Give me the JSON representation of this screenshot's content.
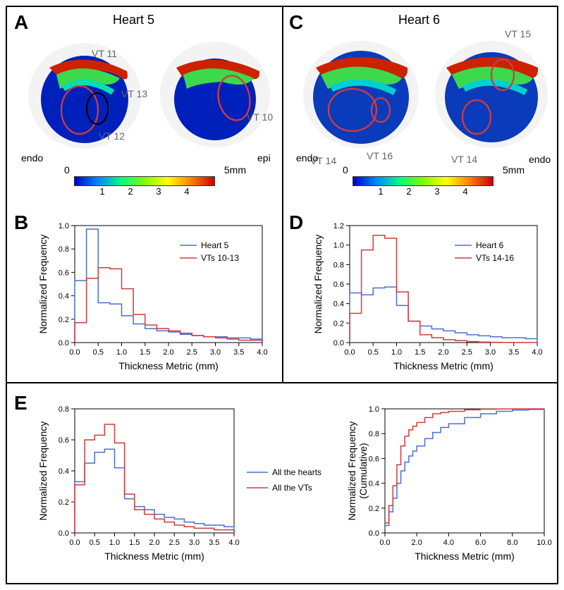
{
  "panels": {
    "A": {
      "letter": "A",
      "title": "Heart 5"
    },
    "B": {
      "letter": "B"
    },
    "C": {
      "letter": "C",
      "title": "Heart 6"
    },
    "D": {
      "letter": "D"
    },
    "E": {
      "letter": "E"
    }
  },
  "heart5": {
    "view1_label": "endo",
    "view2_label": "epi",
    "vt_labels": {
      "vt10": "VT 10",
      "vt11": "VT 11",
      "vt12": "VT 12",
      "vt13": "VT 13"
    }
  },
  "heart6": {
    "view1_label": "endo",
    "view2_label": "endo",
    "vt_labels": {
      "vt14a": "VT 14",
      "vt14b": "VT 14",
      "vt15": "VT 15",
      "vt16": "VT 16"
    }
  },
  "colorbar": {
    "min_label": "0",
    "max_label": "5mm",
    "ticks": [
      "1",
      "2",
      "3",
      "4"
    ]
  },
  "colors": {
    "heart_line": "#4a6fd4",
    "vt_line": "#d43a3a",
    "axis": "#000000"
  },
  "chartB": {
    "type": "histogram",
    "xlabel": "Thickness Metric (mm)",
    "ylabel": "Normalized Frequency",
    "xlim": [
      0,
      4
    ],
    "ylim": [
      0,
      1.0
    ],
    "xticks": [
      0.0,
      0.5,
      1.0,
      1.5,
      2.0,
      2.5,
      3.0,
      3.5,
      4.0
    ],
    "yticks": [
      0.0,
      0.2,
      0.4,
      0.6,
      0.8,
      1.0
    ],
    "legend": {
      "series1": "Heart 5",
      "series2": "VTs 10-13"
    },
    "bin_edges": [
      0,
      0.25,
      0.5,
      0.75,
      1.0,
      1.25,
      1.5,
      1.75,
      2.0,
      2.25,
      2.5,
      2.75,
      3.0,
      3.25,
      3.5,
      3.75,
      4.0
    ],
    "series1_vals": [
      0.53,
      0.97,
      0.34,
      0.33,
      0.23,
      0.16,
      0.12,
      0.1,
      0.09,
      0.07,
      0.06,
      0.05,
      0.05,
      0.04,
      0.04,
      0.03
    ],
    "series2_vals": [
      0.17,
      0.55,
      0.64,
      0.63,
      0.46,
      0.24,
      0.15,
      0.12,
      0.1,
      0.08,
      0.06,
      0.05,
      0.04,
      0.03,
      0.02,
      0.02
    ]
  },
  "chartD": {
    "type": "histogram",
    "xlabel": "Thickness Metric (mm)",
    "ylabel": "Normalized Frequency",
    "xlim": [
      0,
      4
    ],
    "ylim": [
      0,
      1.2
    ],
    "xticks": [
      0.0,
      0.5,
      1.0,
      1.5,
      2.0,
      2.5,
      3.0,
      3.5,
      4.0
    ],
    "yticks": [
      0.0,
      0.2,
      0.4,
      0.6,
      0.8,
      1.0,
      1.2
    ],
    "legend": {
      "series1": "Heart 6",
      "series2": "VTs 14-16"
    },
    "bin_edges": [
      0,
      0.25,
      0.5,
      0.75,
      1.0,
      1.25,
      1.5,
      1.75,
      2.0,
      2.25,
      2.5,
      2.75,
      3.0,
      3.25,
      3.5,
      3.75,
      4.0
    ],
    "series1_vals": [
      0.51,
      0.49,
      0.56,
      0.57,
      0.38,
      0.22,
      0.17,
      0.14,
      0.12,
      0.1,
      0.08,
      0.07,
      0.06,
      0.05,
      0.05,
      0.04
    ],
    "series2_vals": [
      0.3,
      0.95,
      1.1,
      1.07,
      0.52,
      0.22,
      0.08,
      0.05,
      0.03,
      0.02,
      0.01,
      0.005,
      0.003,
      0.002,
      0.001,
      0.001
    ]
  },
  "chartE1": {
    "type": "histogram",
    "xlabel": "Thickness Metric (mm)",
    "ylabel": "Normalized Frequency",
    "xlim": [
      0,
      4
    ],
    "ylim": [
      0,
      0.8
    ],
    "xticks": [
      0.0,
      0.5,
      1.0,
      1.5,
      2.0,
      2.5,
      3.0,
      3.5,
      4.0
    ],
    "yticks": [
      0.0,
      0.2,
      0.4,
      0.6,
      0.8
    ],
    "bin_edges": [
      0,
      0.25,
      0.5,
      0.75,
      1.0,
      1.25,
      1.5,
      1.75,
      2.0,
      2.25,
      2.5,
      2.75,
      3.0,
      3.25,
      3.5,
      3.75,
      4.0
    ],
    "series1_vals": [
      0.33,
      0.45,
      0.52,
      0.54,
      0.42,
      0.22,
      0.17,
      0.15,
      0.12,
      0.1,
      0.09,
      0.07,
      0.06,
      0.05,
      0.05,
      0.04
    ],
    "series2_vals": [
      0.31,
      0.6,
      0.63,
      0.7,
      0.58,
      0.25,
      0.15,
      0.12,
      0.09,
      0.07,
      0.05,
      0.04,
      0.03,
      0.03,
      0.02,
      0.02
    ]
  },
  "chartE2": {
    "type": "cumulative",
    "xlabel": "Thickness Metric (mm)",
    "ylabel": "Normalized Frequency\n(Cumulative)",
    "xlim": [
      0,
      10
    ],
    "ylim": [
      0,
      1.0
    ],
    "xticks": [
      0.0,
      2.0,
      4.0,
      6.0,
      8.0,
      10.0
    ],
    "yticks": [
      0.0,
      0.2,
      0.4,
      0.6,
      0.8,
      1.0
    ],
    "x_vals": [
      0,
      0.25,
      0.5,
      0.75,
      1.0,
      1.25,
      1.5,
      1.75,
      2.0,
      2.5,
      3.0,
      3.5,
      4.0,
      5.0,
      6.0,
      7.0,
      8.0,
      9.0,
      10.0
    ],
    "series1_vals": [
      0.06,
      0.17,
      0.28,
      0.4,
      0.5,
      0.57,
      0.62,
      0.66,
      0.7,
      0.76,
      0.81,
      0.85,
      0.88,
      0.93,
      0.96,
      0.98,
      0.99,
      0.995,
      1.0
    ],
    "series2_vals": [
      0.08,
      0.22,
      0.38,
      0.55,
      0.7,
      0.78,
      0.83,
      0.86,
      0.89,
      0.93,
      0.96,
      0.97,
      0.98,
      0.992,
      0.997,
      0.999,
      1.0,
      1.0,
      1.0
    ]
  },
  "legendE": {
    "series1": "All the hearts",
    "series2": "All the VTs"
  }
}
